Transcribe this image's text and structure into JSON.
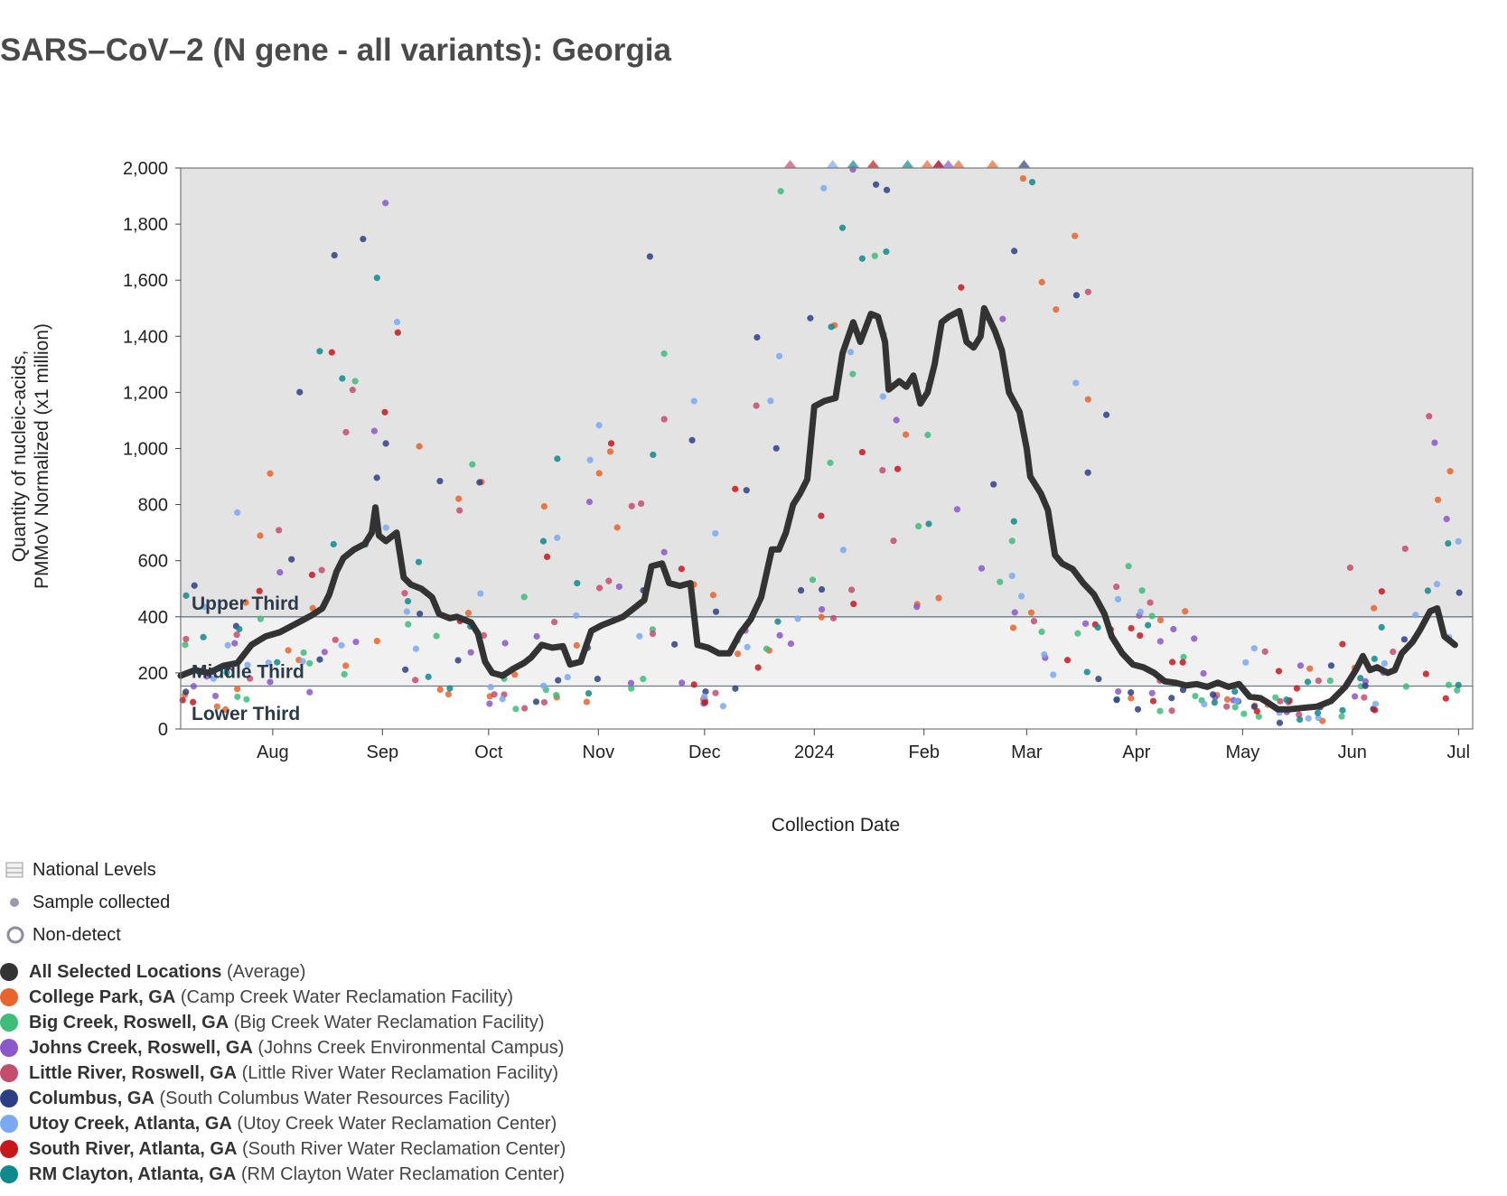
{
  "title": "SARS–CoV–2 (N gene - all variants): Georgia",
  "chart_data": {
    "type": "scatter",
    "title": "SARS–CoV–2 (N gene - all variants): Georgia",
    "xlabel": "Collection Date",
    "ylabel_line1": "Quantity of nucleic-acids,",
    "ylabel_line2": "PMMoV Normalized (x1 million)",
    "ylim": [
      0,
      2000
    ],
    "y_ticks": [
      "0",
      "200",
      "400",
      "600",
      "800",
      "1,000",
      "1,200",
      "1,400",
      "1,600",
      "1,800",
      "2,000"
    ],
    "y_tick_values": [
      0,
      200,
      400,
      600,
      800,
      1000,
      1200,
      1400,
      1600,
      1800,
      2000
    ],
    "xlim": [
      "2023-07-06",
      "2024-07-05"
    ],
    "x_ticks": [
      {
        "label": "Aug",
        "date": "2023-08-01"
      },
      {
        "label": "Sep",
        "date": "2023-09-01"
      },
      {
        "label": "Oct",
        "date": "2023-10-01"
      },
      {
        "label": "Nov",
        "date": "2023-11-01"
      },
      {
        "label": "Dec",
        "date": "2023-12-01"
      },
      {
        "label": "2024",
        "date": "2024-01-01"
      },
      {
        "label": "Feb",
        "date": "2024-02-01"
      },
      {
        "label": "Mar",
        "date": "2024-03-01"
      },
      {
        "label": "Apr",
        "date": "2024-04-01"
      },
      {
        "label": "May",
        "date": "2024-05-01"
      },
      {
        "label": "Jun",
        "date": "2024-06-01"
      },
      {
        "label": "Jul",
        "date": "2024-07-01"
      }
    ],
    "bands": [
      {
        "label": "Upper Third",
        "from": 400,
        "to": 2000,
        "color": "#e3e3e3"
      },
      {
        "label": "Middle Third",
        "from": 153,
        "to": 400,
        "color": "#f1f1f1"
      },
      {
        "label": "Lower Third",
        "from": 0,
        "to": 153,
        "color": "#ffffff"
      }
    ],
    "average_series": {
      "name": "All Selected Locations",
      "color": "#333333",
      "points": [
        [
          "2023-07-06",
          190
        ],
        [
          "2023-07-10",
          210
        ],
        [
          "2023-07-14",
          200
        ],
        [
          "2023-07-18",
          225
        ],
        [
          "2023-07-22",
          235
        ],
        [
          "2023-07-26",
          300
        ],
        [
          "2023-07-30",
          330
        ],
        [
          "2023-08-03",
          345
        ],
        [
          "2023-08-06",
          365
        ],
        [
          "2023-08-09",
          385
        ],
        [
          "2023-08-12",
          405
        ],
        [
          "2023-08-15",
          430
        ],
        [
          "2023-08-17",
          480
        ],
        [
          "2023-08-19",
          560
        ],
        [
          "2023-08-21",
          610
        ],
        [
          "2023-08-24",
          640
        ],
        [
          "2023-08-27",
          660
        ],
        [
          "2023-08-29",
          700
        ],
        [
          "2023-08-30",
          790
        ],
        [
          "2023-08-31",
          690
        ],
        [
          "2023-09-02",
          670
        ],
        [
          "2023-09-05",
          700
        ],
        [
          "2023-09-07",
          540
        ],
        [
          "2023-09-09",
          515
        ],
        [
          "2023-09-12",
          500
        ],
        [
          "2023-09-15",
          470
        ],
        [
          "2023-09-17",
          410
        ],
        [
          "2023-09-20",
          395
        ],
        [
          "2023-09-22",
          400
        ],
        [
          "2023-09-24",
          390
        ],
        [
          "2023-09-26",
          380
        ],
        [
          "2023-09-28",
          340
        ],
        [
          "2023-09-30",
          240
        ],
        [
          "2023-10-02",
          200
        ],
        [
          "2023-10-05",
          190
        ],
        [
          "2023-10-08",
          215
        ],
        [
          "2023-10-11",
          235
        ],
        [
          "2023-10-13",
          255
        ],
        [
          "2023-10-16",
          300
        ],
        [
          "2023-10-19",
          290
        ],
        [
          "2023-10-22",
          295
        ],
        [
          "2023-10-24",
          230
        ],
        [
          "2023-10-27",
          240
        ],
        [
          "2023-10-30",
          350
        ],
        [
          "2023-11-02",
          370
        ],
        [
          "2023-11-05",
          385
        ],
        [
          "2023-11-08",
          400
        ],
        [
          "2023-11-11",
          430
        ],
        [
          "2023-11-14",
          460
        ],
        [
          "2023-11-16",
          580
        ],
        [
          "2023-11-19",
          590
        ],
        [
          "2023-11-21",
          520
        ],
        [
          "2023-11-24",
          510
        ],
        [
          "2023-11-27",
          520
        ],
        [
          "2023-11-29",
          300
        ],
        [
          "2023-12-02",
          290
        ],
        [
          "2023-12-05",
          270
        ],
        [
          "2023-12-08",
          270
        ],
        [
          "2023-12-11",
          340
        ],
        [
          "2023-12-14",
          390
        ],
        [
          "2023-12-17",
          470
        ],
        [
          "2023-12-20",
          640
        ],
        [
          "2023-12-22",
          640
        ],
        [
          "2023-12-24",
          700
        ],
        [
          "2023-12-26",
          800
        ],
        [
          "2023-12-28",
          840
        ],
        [
          "2023-12-30",
          890
        ],
        [
          "2024-01-01",
          1150
        ],
        [
          "2024-01-04",
          1170
        ],
        [
          "2024-01-07",
          1180
        ],
        [
          "2024-01-09",
          1340
        ],
        [
          "2024-01-12",
          1450
        ],
        [
          "2024-01-14",
          1380
        ],
        [
          "2024-01-17",
          1480
        ],
        [
          "2024-01-19",
          1470
        ],
        [
          "2024-01-21",
          1380
        ],
        [
          "2024-01-22",
          1210
        ],
        [
          "2024-01-25",
          1240
        ],
        [
          "2024-01-27",
          1220
        ],
        [
          "2024-01-29",
          1260
        ],
        [
          "2024-01-31",
          1160
        ],
        [
          "2024-02-02",
          1200
        ],
        [
          "2024-02-04",
          1300
        ],
        [
          "2024-02-06",
          1450
        ],
        [
          "2024-02-08",
          1470
        ],
        [
          "2024-02-11",
          1490
        ],
        [
          "2024-02-13",
          1380
        ],
        [
          "2024-02-15",
          1360
        ],
        [
          "2024-02-17",
          1400
        ],
        [
          "2024-02-18",
          1500
        ],
        [
          "2024-02-21",
          1420
        ],
        [
          "2024-02-23",
          1350
        ],
        [
          "2024-02-25",
          1200
        ],
        [
          "2024-02-28",
          1130
        ],
        [
          "2024-03-01",
          1000
        ],
        [
          "2024-03-02",
          900
        ],
        [
          "2024-03-05",
          840
        ],
        [
          "2024-03-07",
          780
        ],
        [
          "2024-03-09",
          620
        ],
        [
          "2024-03-11",
          590
        ],
        [
          "2024-03-14",
          570
        ],
        [
          "2024-03-17",
          520
        ],
        [
          "2024-03-20",
          480
        ],
        [
          "2024-03-23",
          410
        ],
        [
          "2024-03-25",
          330
        ],
        [
          "2024-03-28",
          270
        ],
        [
          "2024-03-31",
          230
        ],
        [
          "2024-04-03",
          220
        ],
        [
          "2024-04-06",
          200
        ],
        [
          "2024-04-09",
          170
        ],
        [
          "2024-04-12",
          165
        ],
        [
          "2024-04-15",
          155
        ],
        [
          "2024-04-18",
          160
        ],
        [
          "2024-04-21",
          150
        ],
        [
          "2024-04-24",
          165
        ],
        [
          "2024-04-27",
          150
        ],
        [
          "2024-04-30",
          160
        ],
        [
          "2024-05-03",
          115
        ],
        [
          "2024-05-06",
          110
        ],
        [
          "2024-05-08",
          95
        ],
        [
          "2024-05-11",
          70
        ],
        [
          "2024-05-14",
          70
        ],
        [
          "2024-05-18",
          75
        ],
        [
          "2024-05-22",
          80
        ],
        [
          "2024-05-26",
          100
        ],
        [
          "2024-05-30",
          150
        ],
        [
          "2024-06-02",
          210
        ],
        [
          "2024-06-04",
          260
        ],
        [
          "2024-06-06",
          210
        ],
        [
          "2024-06-08",
          220
        ],
        [
          "2024-06-11",
          200
        ],
        [
          "2024-06-13",
          210
        ],
        [
          "2024-06-15",
          270
        ],
        [
          "2024-06-18",
          310
        ],
        [
          "2024-06-20",
          350
        ],
        [
          "2024-06-23",
          420
        ],
        [
          "2024-06-25",
          430
        ],
        [
          "2024-06-27",
          330
        ],
        [
          "2024-06-30",
          300
        ]
      ]
    },
    "series": [
      {
        "name": "College Park, GA",
        "facility": "Camp Creek Water Reclamation Facility",
        "color": "#e8642c"
      },
      {
        "name": "Big Creek, Roswell, GA",
        "facility": "Big Creek Water Reclamation Facility",
        "color": "#3ebc7a"
      },
      {
        "name": "Johns Creek, Roswell, GA",
        "facility": "Johns Creek Environmental Campus",
        "color": "#8b57c9"
      },
      {
        "name": "Little River, Roswell, GA",
        "facility": "Little River Water Reclamation Facility",
        "color": "#c44c6e"
      },
      {
        "name": "Columbus, GA",
        "facility": "South Columbus Water Resources Facility",
        "color": "#2b3f84"
      },
      {
        "name": "Utoy Creek, Atlanta, GA",
        "facility": "Utoy Creek Water Reclamation Center",
        "color": "#7aa9f2"
      },
      {
        "name": "South River, Atlanta, GA",
        "facility": "South River Water Reclamation Center",
        "color": "#c8161d"
      },
      {
        "name": "RM Clayton, Atlanta, GA",
        "facility": "RM Clayton Water Reclamation Center",
        "color": "#0f8a8c"
      }
    ],
    "legend": {
      "national_levels": "National Levels",
      "sample_collected": "Sample collected",
      "non_detect": "Non-detect",
      "all_selected_name": "All Selected Locations",
      "all_selected_suffix": "(Average)"
    }
  }
}
